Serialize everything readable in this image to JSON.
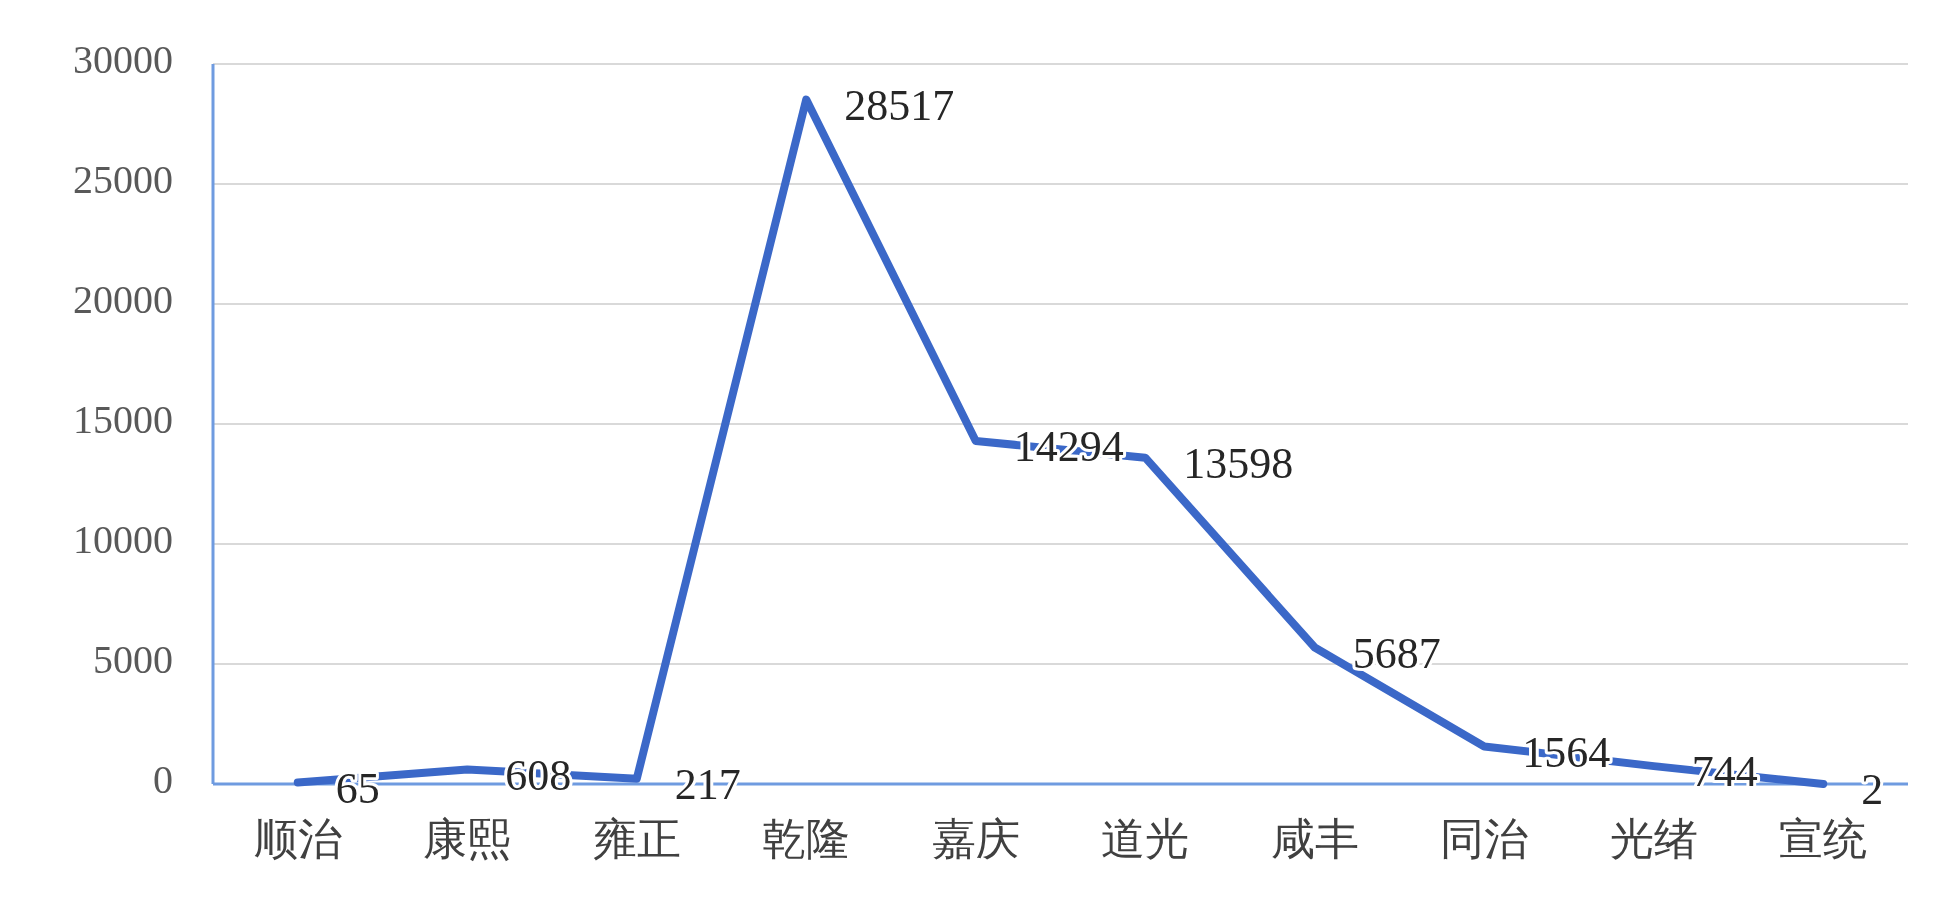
{
  "chart_data": {
    "type": "line",
    "categories": [
      "顺治",
      "康熙",
      "雍正",
      "乾隆",
      "嘉庆",
      "道光",
      "咸丰",
      "同治",
      "光绪",
      "宣统"
    ],
    "series": [
      {
        "color": "#3b68c8",
        "values": [
          65,
          608,
          217,
          28517,
          14294,
          13598,
          5687,
          1564,
          744,
          2
        ]
      }
    ],
    "ylim": [
      0,
      30000
    ],
    "yticks": [
      0,
      5000,
      10000,
      15000,
      20000,
      25000,
      30000
    ],
    "grid": "y",
    "data_labels": true,
    "marker": "none",
    "line_style": "solid"
  }
}
